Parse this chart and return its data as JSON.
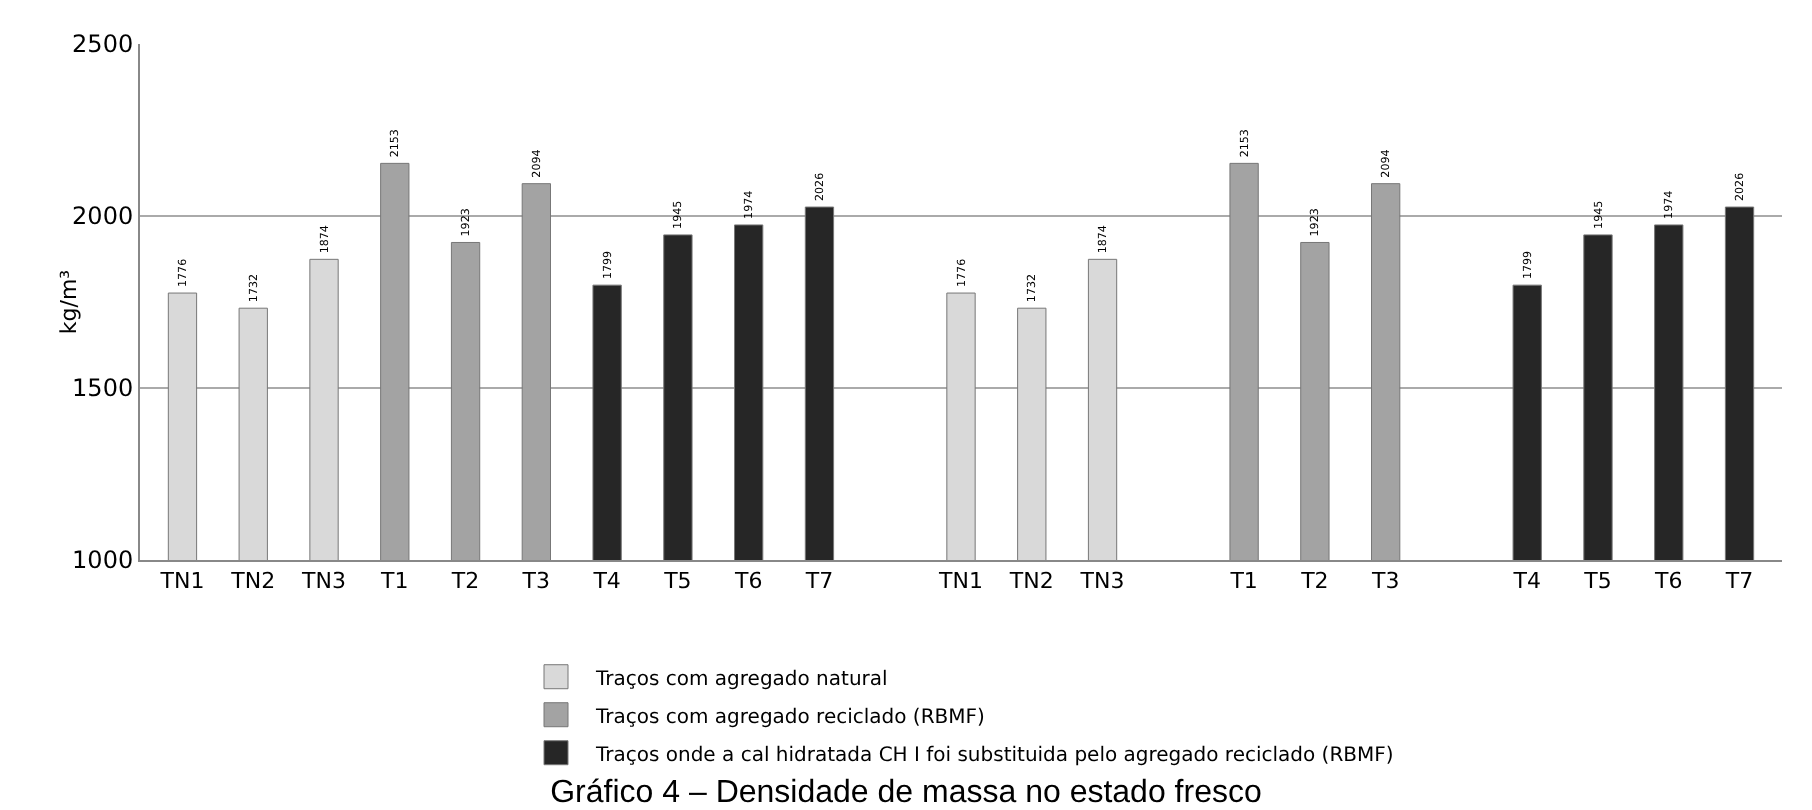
{
  "chart_data": {
    "type": "bar",
    "title": "Gráfico 4 – Densidade de massa no estado fresco",
    "ylabel": "kg/m³",
    "categories": [
      "TN1",
      "TN2",
      "TN3",
      "T1",
      "T2",
      "T3",
      "T4",
      "T5",
      "T6",
      "T7",
      null,
      "TN1",
      "TN2",
      "TN3",
      null,
      "T1",
      "T2",
      "T3",
      null,
      "T4",
      "T5",
      "T6",
      "T7"
    ],
    "series": [
      {
        "name": "Traços com agregado natural",
        "color": "#d9d9d9",
        "values": [
          1776,
          1732,
          1874,
          null,
          null,
          null,
          null,
          null,
          null,
          null,
          null,
          1776,
          1732,
          1874,
          null,
          null,
          null,
          null,
          null,
          null,
          null,
          null,
          null
        ]
      },
      {
        "name": "Traços com agregado reciclado (RBMF)",
        "color": "#a3a3a3",
        "values": [
          null,
          null,
          null,
          2153,
          1923,
          2094,
          null,
          null,
          null,
          null,
          null,
          null,
          null,
          null,
          null,
          2153,
          1923,
          2094,
          null,
          null,
          null,
          null,
          null
        ]
      },
      {
        "name": "Traços onde a cal hidratada CH I foi substituida pelo agregado reciclado (RBMF)",
        "color": "#262626",
        "values": [
          null,
          null,
          null,
          null,
          null,
          null,
          1799,
          1945,
          1974,
          2026,
          null,
          null,
          null,
          null,
          null,
          null,
          null,
          null,
          null,
          1799,
          1945,
          1974,
          2026
        ]
      }
    ],
    "ylim": [
      1000,
      2500
    ],
    "yticks": [
      1000,
      1500,
      2000,
      2500
    ],
    "grid": "y",
    "legend": "bottom",
    "data_labels": true
  }
}
